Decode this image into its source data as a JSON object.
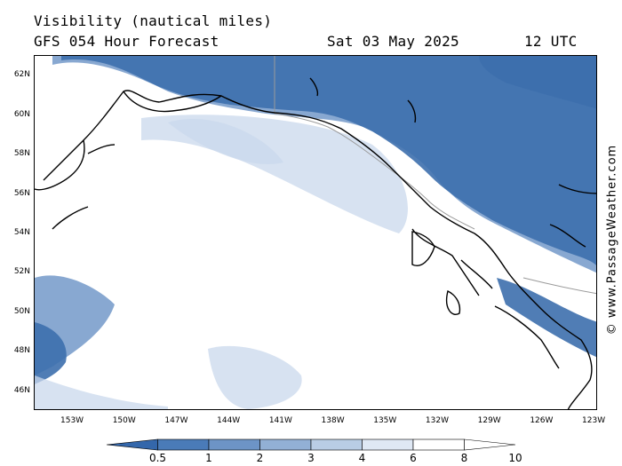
{
  "header": {
    "title": "Visibility (nautical miles)",
    "forecast": "GFS 054 Hour Forecast",
    "date": "Sat 03 May 2025",
    "time": "12 UTC"
  },
  "credit": "© www.PassageWeather.com",
  "map": {
    "lat_range": [
      45,
      63
    ],
    "lon_range": [
      -155.2,
      -122.8
    ],
    "lat_labels": [
      {
        "value": 62,
        "label": "62N"
      },
      {
        "value": 60,
        "label": "60N"
      },
      {
        "value": 58,
        "label": "58N"
      },
      {
        "value": 56,
        "label": "56N"
      },
      {
        "value": 54,
        "label": "54N"
      },
      {
        "value": 52,
        "label": "52N"
      },
      {
        "value": 50,
        "label": "50N"
      },
      {
        "value": 48,
        "label": "48N"
      },
      {
        "value": 46,
        "label": "46N"
      }
    ],
    "lon_labels": [
      {
        "value": -153,
        "label": "153W"
      },
      {
        "value": -150,
        "label": "150W"
      },
      {
        "value": -147,
        "label": "147W"
      },
      {
        "value": -144,
        "label": "144W"
      },
      {
        "value": -141,
        "label": "141W"
      },
      {
        "value": -138,
        "label": "138W"
      },
      {
        "value": -135,
        "label": "135W"
      },
      {
        "value": -132,
        "label": "132W"
      },
      {
        "value": -129,
        "label": "129W"
      },
      {
        "value": -126,
        "label": "126W"
      },
      {
        "value": -123,
        "label": "123W"
      }
    ],
    "fill_colors": {
      "low": "#3d6fad",
      "mid": "#7b9fcc",
      "light": "#c9d8ec"
    },
    "coast_color": "#000000",
    "border_color": "#9a9a9a"
  },
  "legend": {
    "colors": [
      "#3467ab",
      "#4a7bb8",
      "#6d94c6",
      "#92b0d5",
      "#b9cde5",
      "#dfe8f4",
      "#ffffff"
    ],
    "labels": [
      "0.5",
      "1",
      "2",
      "3",
      "4",
      "6",
      "8",
      "10"
    ]
  }
}
